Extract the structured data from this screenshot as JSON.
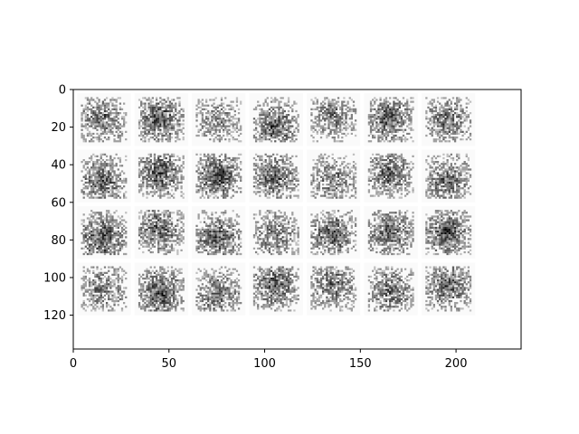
{
  "chart_data": {
    "type": "heatmap",
    "title": "",
    "xlabel": "",
    "ylabel": "",
    "colormap": "gray_r",
    "image_width": 234,
    "image_height": 138,
    "xlim": [
      0,
      234
    ],
    "ylim": [
      138,
      0
    ],
    "x_ticks": [
      0,
      50,
      100,
      150,
      200
    ],
    "y_ticks": [
      0,
      20,
      40,
      60,
      80,
      100,
      120
    ],
    "tile_grid": {
      "rows": 4,
      "cols": 7,
      "tile_size": 28,
      "padding": 2
    },
    "tiles": [
      {
        "row": 0,
        "col": 0,
        "seed": 11,
        "density": 0.42
      },
      {
        "row": 0,
        "col": 1,
        "seed": 23,
        "density": 0.55
      },
      {
        "row": 0,
        "col": 2,
        "seed": 37,
        "density": 0.32
      },
      {
        "row": 0,
        "col": 3,
        "seed": 41,
        "density": 0.5
      },
      {
        "row": 0,
        "col": 4,
        "seed": 53,
        "density": 0.4
      },
      {
        "row": 0,
        "col": 5,
        "seed": 67,
        "density": 0.52
      },
      {
        "row": 0,
        "col": 6,
        "seed": 79,
        "density": 0.45
      },
      {
        "row": 1,
        "col": 0,
        "seed": 83,
        "density": 0.5
      },
      {
        "row": 1,
        "col": 1,
        "seed": 97,
        "density": 0.52
      },
      {
        "row": 1,
        "col": 2,
        "seed": 101,
        "density": 0.58
      },
      {
        "row": 1,
        "col": 3,
        "seed": 113,
        "density": 0.5
      },
      {
        "row": 1,
        "col": 4,
        "seed": 127,
        "density": 0.38
      },
      {
        "row": 1,
        "col": 5,
        "seed": 131,
        "density": 0.48
      },
      {
        "row": 1,
        "col": 6,
        "seed": 149,
        "density": 0.45
      },
      {
        "row": 2,
        "col": 0,
        "seed": 151,
        "density": 0.55
      },
      {
        "row": 2,
        "col": 1,
        "seed": 163,
        "density": 0.48
      },
      {
        "row": 2,
        "col": 2,
        "seed": 173,
        "density": 0.52
      },
      {
        "row": 2,
        "col": 3,
        "seed": 181,
        "density": 0.4
      },
      {
        "row": 2,
        "col": 4,
        "seed": 191,
        "density": 0.5
      },
      {
        "row": 2,
        "col": 5,
        "seed": 199,
        "density": 0.5
      },
      {
        "row": 2,
        "col": 6,
        "seed": 211,
        "density": 0.55
      },
      {
        "row": 3,
        "col": 0,
        "seed": 223,
        "density": 0.4
      },
      {
        "row": 3,
        "col": 1,
        "seed": 227,
        "density": 0.55
      },
      {
        "row": 3,
        "col": 2,
        "seed": 239,
        "density": 0.45
      },
      {
        "row": 3,
        "col": 3,
        "seed": 241,
        "density": 0.5
      },
      {
        "row": 3,
        "col": 4,
        "seed": 251,
        "density": 0.42
      },
      {
        "row": 3,
        "col": 5,
        "seed": 257,
        "density": 0.45
      },
      {
        "row": 3,
        "col": 6,
        "seed": 263,
        "density": 0.48
      }
    ]
  }
}
